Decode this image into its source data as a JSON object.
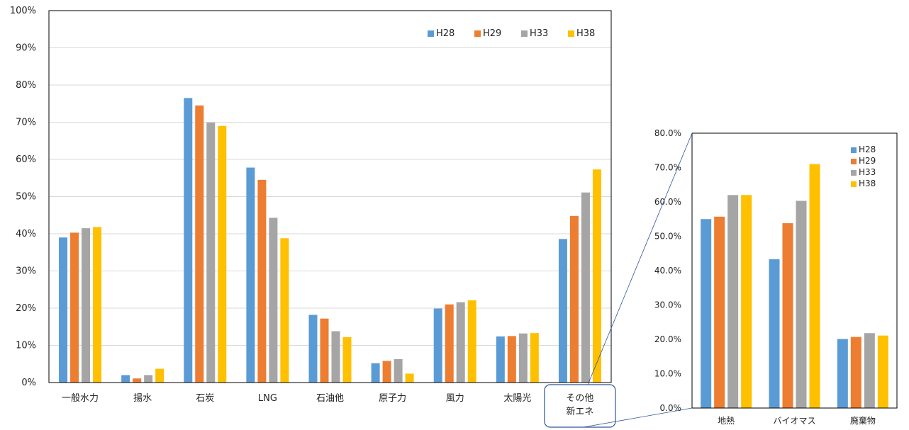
{
  "colors": {
    "H28": "#5b9bd5",
    "H29": "#ed7d31",
    "H33": "#a5a5a5",
    "H38": "#ffc000",
    "gridline": "#d9d9d9",
    "frame": "#000000",
    "connector": "#2f5597"
  },
  "chart_data": [
    {
      "type": "bar",
      "categories": [
        "一般水力",
        "揚水",
        "石炭",
        "LNG",
        "石油他",
        "原子力",
        "風力",
        "太陽光",
        "その他\n新エネ"
      ],
      "category_lines": [
        [
          "一般水力"
        ],
        [
          "揚水"
        ],
        [
          "石炭"
        ],
        [
          "LNG"
        ],
        [
          "石油他"
        ],
        [
          "原子力"
        ],
        [
          "風力"
        ],
        [
          "太陽光"
        ],
        [
          "その他",
          "新エネ"
        ]
      ],
      "series": [
        {
          "name": "H28",
          "values": [
            39,
            2,
            76.5,
            57.8,
            18.2,
            5.2,
            19.9,
            12.4,
            38.6
          ]
        },
        {
          "name": "H29",
          "values": [
            40.3,
            1.1,
            74.5,
            54.5,
            17.2,
            5.8,
            21.0,
            12.5,
            44.8
          ]
        },
        {
          "name": "H33",
          "values": [
            41.5,
            2.0,
            69.9,
            44.3,
            13.8,
            6.3,
            21.6,
            13.2,
            51.1
          ]
        },
        {
          "name": "H38",
          "values": [
            41.8,
            3.7,
            69.0,
            38.8,
            12.2,
            2.4,
            22.1,
            13.3,
            57.3
          ]
        }
      ],
      "ylim": [
        0,
        100
      ],
      "yticks": [
        0,
        10,
        20,
        30,
        40,
        50,
        60,
        70,
        80,
        90,
        100
      ],
      "ytick_labels": [
        "0%",
        "10%",
        "20%",
        "30%",
        "40%",
        "50%",
        "60%",
        "70%",
        "80%",
        "90%",
        "100%"
      ],
      "grid": true,
      "legend": "top-right",
      "highlight_category": "その他\n新エネ"
    },
    {
      "type": "bar",
      "categories": [
        "地熱",
        "バイオマス",
        "廃棄物"
      ],
      "series": [
        {
          "name": "H28",
          "values": [
            55.0,
            43.3,
            20.1
          ]
        },
        {
          "name": "H29",
          "values": [
            55.7,
            53.8,
            20.7
          ]
        },
        {
          "name": "H33",
          "values": [
            62.0,
            60.3,
            21.8
          ]
        },
        {
          "name": "H38",
          "values": [
            62.0,
            71.0,
            21.1
          ]
        }
      ],
      "ylim": [
        0,
        80
      ],
      "yticks": [
        0,
        10,
        20,
        30,
        40,
        50,
        60,
        70,
        80
      ],
      "ytick_labels": [
        "0.0%",
        "10.0%",
        "20.0%",
        "30.0%",
        "40.0%",
        "50.0%",
        "60.0%",
        "70.0%",
        "80.0%"
      ],
      "grid": false,
      "legend": "top-right"
    }
  ]
}
